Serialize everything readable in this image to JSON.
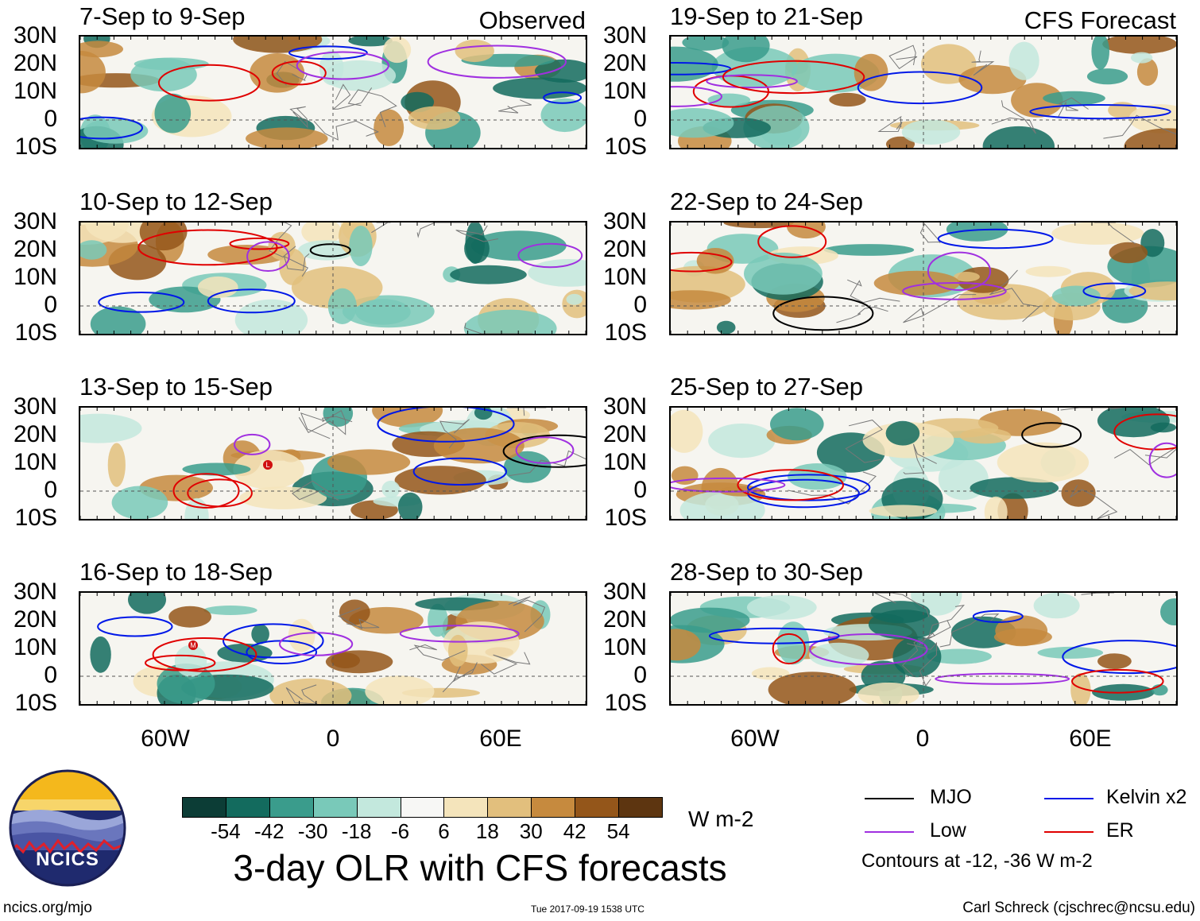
{
  "panels_left": [
    {
      "title": "7-Sep to 9-Sep",
      "tag": "Observed"
    },
    {
      "title": "10-Sep to 12-Sep",
      "tag": ""
    },
    {
      "title": "13-Sep to 15-Sep",
      "tag": ""
    },
    {
      "title": "16-Sep to 18-Sep",
      "tag": ""
    }
  ],
  "panels_right": [
    {
      "title": "19-Sep to 21-Sep",
      "tag": "CFS Forecast"
    },
    {
      "title": "22-Sep to 24-Sep",
      "tag": ""
    },
    {
      "title": "25-Sep to 27-Sep",
      "tag": ""
    },
    {
      "title": "28-Sep to 30-Sep",
      "tag": ""
    }
  ],
  "lat_labels": [
    "30N",
    "20N",
    "10N",
    "0",
    "10S"
  ],
  "lon_labels": [
    "60W",
    "0",
    "60E"
  ],
  "storm_markers": {
    "low": "L",
    "mjo": "M"
  },
  "colorbar": {
    "colors": [
      "#0c3d36",
      "#136b5e",
      "#3a9c8c",
      "#79c9b9",
      "#c3e8dd",
      "#f7f7f5",
      "#f4e4bb",
      "#e2bf7d",
      "#c68a3e",
      "#94561a",
      "#5d3510"
    ],
    "labels": [
      "-54",
      "-42",
      "-30",
      "-18",
      "-6",
      "6",
      "18",
      "30",
      "42",
      "54"
    ],
    "units": "W m-2"
  },
  "main_title": "3-day OLR with CFS forecasts",
  "legend": {
    "items": [
      {
        "label": "MJO",
        "color": "#000000"
      },
      {
        "label": "Kelvin x2",
        "color": "#0018e8"
      },
      {
        "label": "Low",
        "color": "#a030e0"
      },
      {
        "label": "ER",
        "color": "#e00000"
      }
    ],
    "note": "Contours at -12, -36 W m-2"
  },
  "logo": {
    "text": "NCICS"
  },
  "footer": {
    "url": "ncics.org/mjo",
    "timestamp": "Tue 2017-09-19 1538 UTC",
    "credit": "Carl Schreck (cjschrec@ncsu.edu)"
  }
}
